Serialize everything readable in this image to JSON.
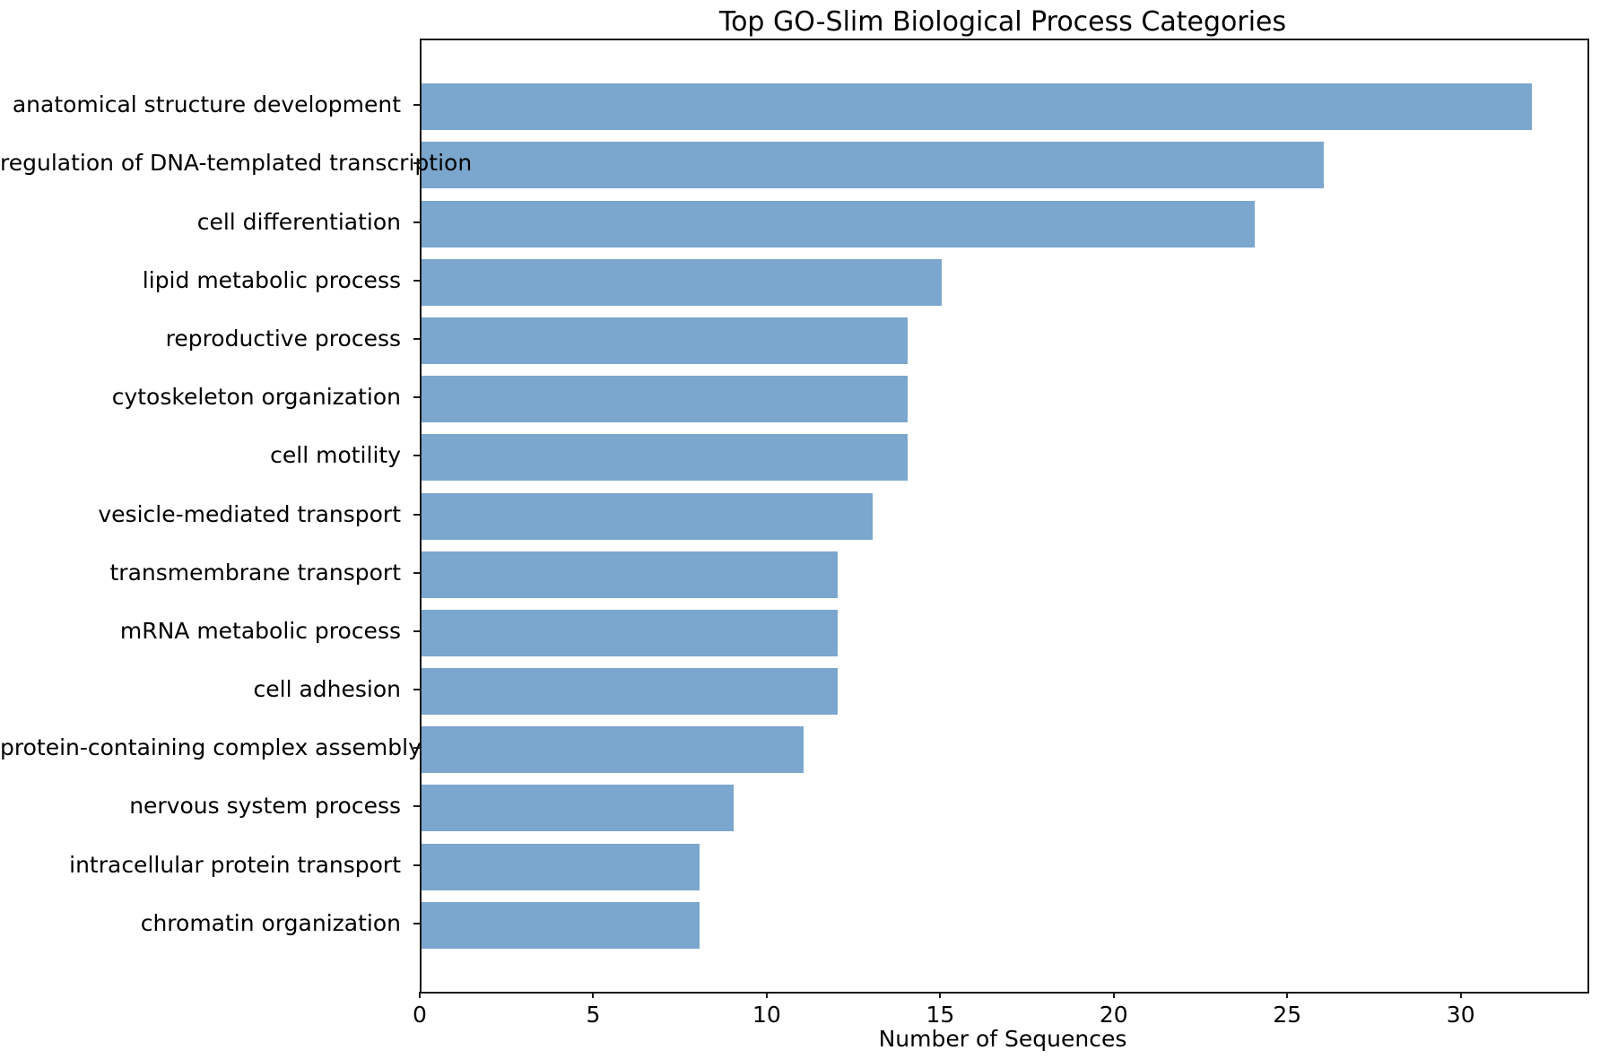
{
  "figure": {
    "title": "Top GO-Slim Biological Process Categories",
    "xlabel": "Number of Sequences"
  },
  "chart_data": {
    "type": "bar",
    "orientation": "horizontal",
    "title": "Top GO-Slim Biological Process Categories",
    "xlabel": "Number of Sequences",
    "ylabel": "",
    "categories": [
      "anatomical structure development",
      "regulation of DNA-templated transcription",
      "cell differentiation",
      "lipid metabolic process",
      "reproductive process",
      "cytoskeleton organization",
      "cell motility",
      "vesicle-mediated transport",
      "transmembrane transport",
      "mRNA metabolic process",
      "cell adhesion",
      "protein-containing complex assembly",
      "nervous system process",
      "intracellular protein transport",
      "chromatin organization"
    ],
    "values": [
      32,
      26,
      24,
      15,
      14,
      14,
      14,
      13,
      12,
      12,
      12,
      11,
      9,
      8,
      8
    ],
    "xticks": [
      0,
      5,
      10,
      15,
      20,
      25,
      30
    ],
    "xlim": [
      0,
      33.6
    ],
    "bar_color": "#7ba6cd",
    "axis_color": "#1a1a1a",
    "grid": false,
    "legend_position": "none"
  }
}
